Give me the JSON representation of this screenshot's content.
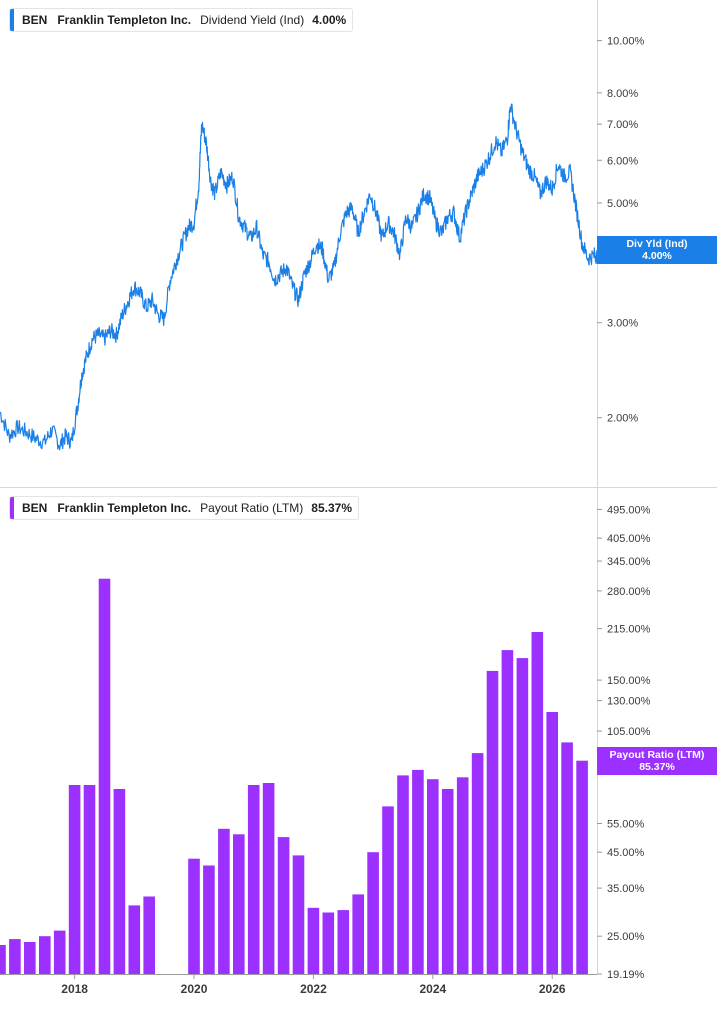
{
  "colors": {
    "yield_line": "#1a7fe6",
    "payout_bar": "#9b30ff",
    "axis": "#9a9a9a",
    "grid_divider": "#d6d6d6",
    "tick_text": "#3a3a3a"
  },
  "top_panel": {
    "ticker": "BEN",
    "company": "Franklin Templeton Inc.",
    "metric": "Dividend Yield (Ind)",
    "value": "4.00%",
    "tag_label": "Div Yld (Ind)",
    "tag_value": "4.00%"
  },
  "bottom_panel": {
    "ticker": "BEN",
    "company": "Franklin Templeton Inc.",
    "metric": "Payout Ratio (LTM)",
    "value": "85.37%",
    "tag_label": "Payout Ratio (LTM)",
    "tag_value": "85.37%"
  },
  "chart_data": [
    {
      "type": "line",
      "scale": "log",
      "ylim": [
        1.6,
        11.2
      ],
      "xlim": [
        2016.75,
        2026.75
      ],
      "yticks": [
        2,
        3,
        5,
        6,
        7,
        8,
        10
      ],
      "ytick_labels": [
        "2.00%",
        "3.00%",
        "5.00%",
        "6.00%",
        "7.00%",
        "8.00%",
        "10.00%"
      ],
      "series": [
        {
          "x": [
            2016.75,
            2016.9,
            2017.05,
            2017.2,
            2017.35,
            2017.5,
            2017.62,
            2017.75,
            2017.85,
            2017.95,
            2018.05,
            2018.12,
            2018.2,
            2018.3,
            2018.4,
            2018.5,
            2018.6,
            2018.7,
            2018.8,
            2018.9,
            2019.0,
            2019.1,
            2019.2,
            2019.3,
            2019.4,
            2019.5,
            2019.6,
            2019.7,
            2019.8,
            2019.9,
            2020.0,
            2020.08,
            2020.13,
            2020.2,
            2020.28,
            2020.35,
            2020.45,
            2020.55,
            2020.65,
            2020.75,
            2020.85,
            2020.95,
            2021.05,
            2021.15,
            2021.25,
            2021.35,
            2021.45,
            2021.55,
            2021.65,
            2021.75,
            2021.85,
            2021.95,
            2022.05,
            2022.15,
            2022.25,
            2022.35,
            2022.45,
            2022.55,
            2022.65,
            2022.75,
            2022.85,
            2022.95,
            2023.05,
            2023.15,
            2023.25,
            2023.35,
            2023.45,
            2023.55,
            2023.65,
            2023.75,
            2023.85,
            2023.95,
            2024.05,
            2024.15,
            2024.25,
            2024.35,
            2024.45,
            2024.55,
            2024.65,
            2024.75,
            2024.85,
            2024.95,
            2025.05,
            2025.15,
            2025.25,
            2025.3,
            2025.4,
            2025.5,
            2025.6,
            2025.7,
            2025.8,
            2025.9,
            2026.0,
            2026.1,
            2026.2,
            2026.3,
            2026.4,
            2026.5,
            2026.6,
            2026.7,
            2026.75
          ],
          "y": [
            2.05,
            1.85,
            1.92,
            1.88,
            1.83,
            1.8,
            1.9,
            1.78,
            1.85,
            1.8,
            2.1,
            2.4,
            2.6,
            2.8,
            2.85,
            2.8,
            2.9,
            2.85,
            3.1,
            3.3,
            3.5,
            3.4,
            3.2,
            3.3,
            3.1,
            3.05,
            3.6,
            3.9,
            4.2,
            4.5,
            4.6,
            5.4,
            7.0,
            6.5,
            5.5,
            5.2,
            5.7,
            5.4,
            5.6,
            4.7,
            4.5,
            4.3,
            4.5,
            4.0,
            3.9,
            3.6,
            3.7,
            3.8,
            3.5,
            3.3,
            3.7,
            3.9,
            4.2,
            4.1,
            3.6,
            3.8,
            4.4,
            4.8,
            4.9,
            4.4,
            4.8,
            5.2,
            4.8,
            4.3,
            4.6,
            4.4,
            4.0,
            4.7,
            4.5,
            4.8,
            5.2,
            5.1,
            4.6,
            4.4,
            4.7,
            4.8,
            4.3,
            4.8,
            5.2,
            5.6,
            5.8,
            6.1,
            6.5,
            6.2,
            6.6,
            7.6,
            6.8,
            6.2,
            5.8,
            5.6,
            5.2,
            5.5,
            5.3,
            5.9,
            5.6,
            5.7,
            4.9,
            4.2,
            3.95,
            4.0,
            4.0
          ]
        }
      ]
    },
    {
      "type": "bar",
      "scale": "log",
      "ylim": [
        19.19,
        500
      ],
      "xlim": [
        2016.75,
        2026.75
      ],
      "yticks": [
        19.19,
        25,
        35,
        45,
        55,
        105,
        130,
        150,
        215,
        280,
        345,
        405,
        495
      ],
      "ytick_labels": [
        "19.19%",
        "25.00%",
        "35.00%",
        "45.00%",
        "55.00%",
        "105.00%",
        "130.00%",
        "150.00%",
        "215.00%",
        "280.00%",
        "345.00%",
        "405.00%",
        "495.00%"
      ],
      "xticks": [
        2018,
        2020,
        2022,
        2024,
        2026
      ],
      "xtick_labels": [
        "2018",
        "2020",
        "2022",
        "2024",
        "2026"
      ],
      "series": [
        {
          "x": [
            2016.75,
            2017.0,
            2017.25,
            2017.5,
            2017.75,
            2018.0,
            2018.25,
            2018.5,
            2018.75,
            2019.0,
            2019.25,
            2019.5,
            2019.75,
            2020.0,
            2020.25,
            2020.5,
            2020.75,
            2021.0,
            2021.25,
            2021.5,
            2021.75,
            2022.0,
            2022.25,
            2022.5,
            2022.75,
            2023.0,
            2023.25,
            2023.5,
            2023.75,
            2024.0,
            2024.25,
            2024.5,
            2024.75,
            2025.0,
            2025.25,
            2025.5,
            2025.75,
            2026.0,
            2026.25,
            2026.5
          ],
          "y": [
            23.5,
            24.5,
            24,
            25,
            26,
            72,
            72,
            305,
            70,
            31,
            33,
            null,
            null,
            43,
            41,
            53,
            51,
            72,
            73,
            50,
            44,
            30.5,
            29.5,
            30,
            33.5,
            45,
            62,
            77,
            80,
            75,
            70,
            76,
            90,
            160,
            185,
            175,
            210,
            120,
            97,
            85.37
          ]
        }
      ]
    }
  ]
}
